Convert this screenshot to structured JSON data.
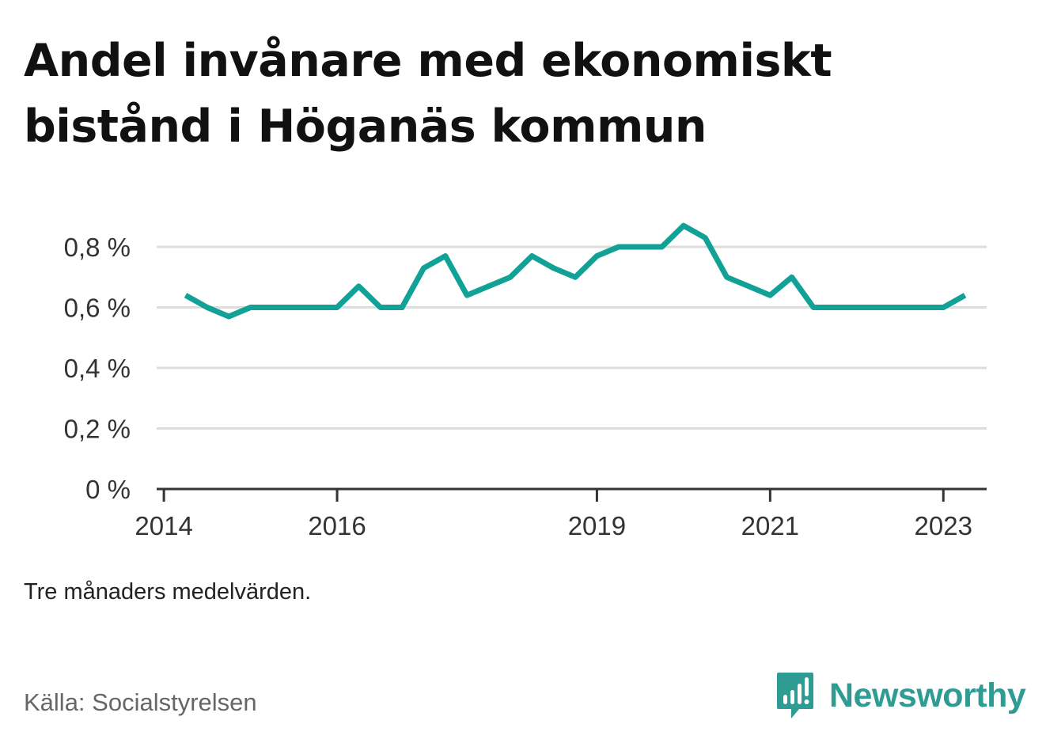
{
  "title": "Andel invånare med ekonomiskt bistånd i Höganäs kommun",
  "note": "Tre månaders medelvärden.",
  "source": "Källa: Socialstyrelsen",
  "brand": {
    "name": "Newsworthy",
    "color": "#2f9c93",
    "icon": "newsworthy-logo-icon"
  },
  "colors": {
    "line": "#12a196",
    "grid": "#dddddd",
    "axis": "#333333"
  },
  "chart_data": {
    "type": "line",
    "title": "Andel invånare med ekonomiskt bistånd i Höganäs kommun",
    "xlabel": "",
    "ylabel": "",
    "ylim": [
      0,
      0.8
    ],
    "xlim": [
      "2013-12",
      "2023-07"
    ],
    "y_ticks": [
      0,
      0.2,
      0.4,
      0.6,
      0.8
    ],
    "y_tick_labels": [
      "0 %",
      "0,2 %",
      "0,4 %",
      "0,6 %",
      "0,8 %"
    ],
    "x_ticks": [
      "2014-01",
      "2016-01",
      "2019-01",
      "2021-01",
      "2023-01"
    ],
    "x_tick_labels": [
      "2014",
      "2016",
      "2019",
      "2021",
      "2023"
    ],
    "grid": true,
    "series": [
      {
        "x": [
          "2014-04",
          "2014-07",
          "2014-10",
          "2015-01",
          "2015-04",
          "2015-07",
          "2015-10",
          "2016-01",
          "2016-04",
          "2016-07",
          "2016-10",
          "2017-01",
          "2017-04",
          "2017-07",
          "2017-10",
          "2018-01",
          "2018-04",
          "2018-07",
          "2018-10",
          "2019-01",
          "2019-04",
          "2019-07",
          "2019-10",
          "2020-01",
          "2020-04",
          "2020-07",
          "2020-10",
          "2021-01",
          "2021-04",
          "2021-07",
          "2021-10",
          "2022-01",
          "2022-04",
          "2022-07",
          "2022-10",
          "2023-01",
          "2023-04"
        ],
        "values": [
          0.64,
          0.6,
          0.57,
          0.6,
          0.6,
          0.6,
          0.6,
          0.6,
          0.67,
          0.6,
          0.6,
          0.73,
          0.77,
          0.64,
          0.67,
          0.7,
          0.77,
          0.73,
          0.7,
          0.77,
          0.8,
          0.8,
          0.8,
          0.87,
          0.83,
          0.7,
          0.67,
          0.64,
          0.7,
          0.6,
          0.6,
          0.6,
          0.6,
          0.6,
          0.6,
          0.6,
          0.64
        ]
      }
    ]
  }
}
